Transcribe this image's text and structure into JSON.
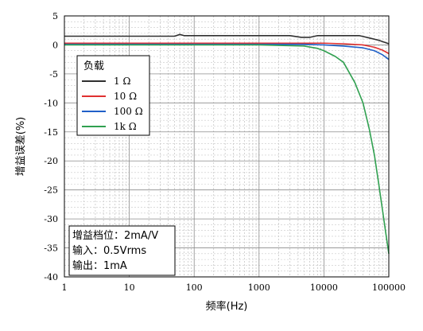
{
  "chart_data": {
    "type": "line",
    "xscale": "log",
    "xlim": [
      1,
      100000
    ],
    "ylim": [
      -40,
      5
    ],
    "xticks": [
      1,
      10,
      100,
      1000,
      10000,
      100000
    ],
    "xtick_labels": [
      "1",
      "10",
      "100",
      "1000",
      "10000",
      "100000"
    ],
    "yticks": [
      5,
      0,
      -5,
      -10,
      -15,
      -20,
      -25,
      -30,
      -35,
      -40
    ],
    "ytick_labels": [
      "5",
      "0",
      "-5",
      "-10",
      "-15",
      "-20",
      "-25",
      "-30",
      "-35",
      "-40"
    ],
    "xlabel": "频率(Hz)",
    "ylabel": "增益误差(%)",
    "grid": true,
    "legend": {
      "title": "负载",
      "position": "upper-left"
    },
    "series": [
      {
        "name": "1 Ω",
        "color": "#303030",
        "points": [
          [
            1,
            1.5
          ],
          [
            10,
            1.5
          ],
          [
            50,
            1.5
          ],
          [
            60,
            1.8
          ],
          [
            70,
            1.6
          ],
          [
            100,
            1.6
          ],
          [
            1000,
            1.6
          ],
          [
            3000,
            1.6
          ],
          [
            4500,
            1.3
          ],
          [
            6000,
            1.3
          ],
          [
            8000,
            1.6
          ],
          [
            10000,
            1.6
          ],
          [
            20000,
            1.6
          ],
          [
            35000,
            1.6
          ],
          [
            50000,
            1.2
          ],
          [
            70000,
            0.8
          ],
          [
            100000,
            0.2
          ]
        ]
      },
      {
        "name": "10 Ω",
        "color": "#e03030",
        "points": [
          [
            1,
            0.3
          ],
          [
            10,
            0.3
          ],
          [
            100,
            0.3
          ],
          [
            1000,
            0.3
          ],
          [
            5000,
            0.3
          ],
          [
            10000,
            0.3
          ],
          [
            20000,
            0.2
          ],
          [
            40000,
            0.0
          ],
          [
            60000,
            -0.4
          ],
          [
            80000,
            -0.9
          ],
          [
            100000,
            -1.5
          ]
        ]
      },
      {
        "name": "100 Ω",
        "color": "#2060c8",
        "points": [
          [
            1,
            0.1
          ],
          [
            10,
            0.1
          ],
          [
            100,
            0.1
          ],
          [
            1000,
            0.1
          ],
          [
            5000,
            0.1
          ],
          [
            10000,
            0.0
          ],
          [
            20000,
            -0.2
          ],
          [
            40000,
            -0.5
          ],
          [
            60000,
            -1.0
          ],
          [
            80000,
            -1.7
          ],
          [
            100000,
            -2.5
          ]
        ]
      },
      {
        "name": "1k Ω",
        "color": "#30a050",
        "points": [
          [
            1,
            0.0
          ],
          [
            10,
            0.0
          ],
          [
            100,
            0.0
          ],
          [
            1000,
            0.0
          ],
          [
            5000,
            -0.2
          ],
          [
            8000,
            -0.6
          ],
          [
            10000,
            -1.0
          ],
          [
            15000,
            -2.0
          ],
          [
            20000,
            -3.0
          ],
          [
            30000,
            -6.5
          ],
          [
            40000,
            -10.0
          ],
          [
            50000,
            -14.5
          ],
          [
            60000,
            -19.0
          ],
          [
            70000,
            -24.0
          ],
          [
            80000,
            -28.5
          ],
          [
            90000,
            -32.5
          ],
          [
            100000,
            -36.0
          ]
        ]
      }
    ],
    "annotation": [
      "增益档位：2mA/V",
      "输入：0.5Vrms",
      "输出：1mA"
    ]
  }
}
